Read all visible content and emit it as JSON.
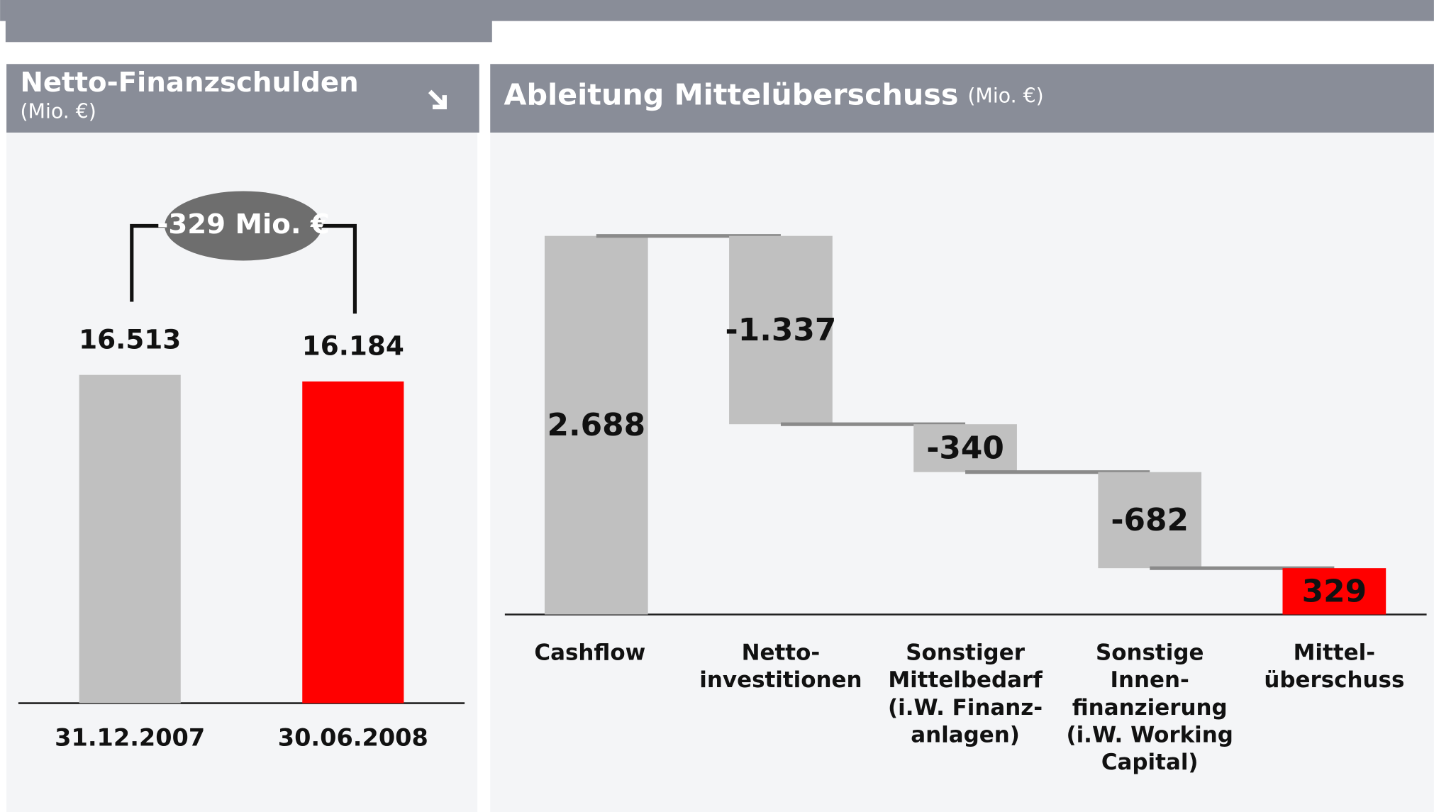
{
  "chart_data": [
    {
      "type": "bar",
      "title": "Netto-Finanzschulden",
      "subtitle": "(Mio. €)",
      "categories": [
        "31.12.2007",
        "30.06.2008"
      ],
      "values": [
        16513,
        16184
      ],
      "value_labels": [
        "16.513",
        "16.184"
      ],
      "colors": [
        "#c0c0c0",
        "#ff0000"
      ],
      "annotation": "-329 Mio. €"
    },
    {
      "type": "waterfall",
      "title": "Ableitung Mittelüberschuss",
      "subtitle": "(Mio. €)",
      "categories": [
        [
          "Cashflow"
        ],
        [
          "Netto-",
          "investitionen"
        ],
        [
          "Sonstiger",
          "Mittelbedarf",
          "(i.W. Finanz-",
          "anlagen)"
        ],
        [
          "Sonstige",
          "Innen-",
          "finanzierung",
          "(i.W. Working",
          "Capital)"
        ],
        [
          "Mittel-",
          "überschuss"
        ]
      ],
      "values": [
        2688,
        -1337,
        -340,
        -682,
        329
      ],
      "value_labels": [
        "2.688",
        "-1.337",
        "-340",
        "-682",
        "329"
      ],
      "measure": [
        "absolute",
        "relative",
        "relative",
        "relative",
        "total"
      ],
      "colors": [
        "#c0c0c0",
        "#c0c0c0",
        "#c0c0c0",
        "#c0c0c0",
        "#ff0000"
      ]
    }
  ]
}
